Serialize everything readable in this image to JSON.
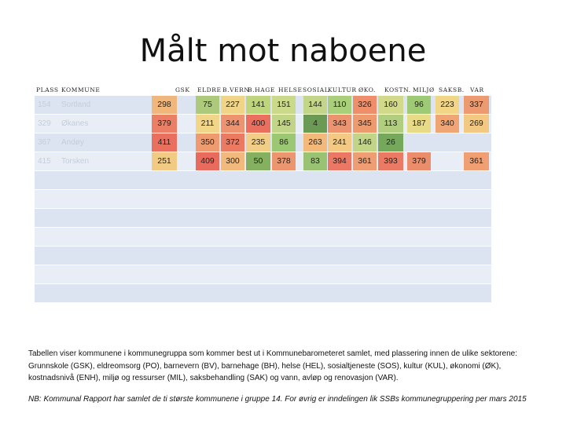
{
  "title": "Målt mot naboene",
  "headers": [
    "PLASS",
    "KOMMUNE",
    "GSK",
    "ELDRE",
    "B.VERN",
    "B.HAGE",
    "HELSE",
    "SOSIAL",
    "KULTUR",
    "ØKO.",
    "KOSTN.",
    "MILJØ",
    "SAKSB.",
    "VAR"
  ],
  "rows": [
    {
      "rank": "154",
      "name": "Sortland",
      "values": [
        "298",
        "75",
        "227",
        "141",
        "151",
        "144",
        "110",
        "326",
        "160",
        "96",
        "223",
        "337"
      ],
      "colors": [
        "#f0b77c",
        "#acc97c",
        "#f0d488",
        "#bed57e",
        "#cad98a",
        "#c3d589",
        "#aacf7a",
        "#ee8e6a",
        "#d2da89",
        "#9fca75",
        "#f2d688",
        "#ee9a70"
      ]
    },
    {
      "rank": "329",
      "name": "Økanes",
      "values": [
        "379",
        "211",
        "344",
        "400",
        "145",
        "4",
        "343",
        "345",
        "113",
        "187",
        "340",
        "269"
      ],
      "colors": [
        "#eb7f66",
        "#f1d588",
        "#ee9370",
        "#ea6f5e",
        "#c2d488",
        "#6a9a53",
        "#ec9470",
        "#ed9a6f",
        "#b1ce7f",
        "#e8db88",
        "#f0a575",
        "#f3c882"
      ]
    },
    {
      "rank": "367",
      "name": "Andøy",
      "values": [
        "411",
        "350",
        "372",
        "235",
        "86",
        "263",
        "241",
        "146",
        "26",
        "",
        "",
        ""
      ],
      "colors": [
        "#e9705e",
        "#ef9b70",
        "#ea7a62",
        "#f1cd85",
        "#9cc874",
        "#f3b97a",
        "#f3c983",
        "#c1d488",
        "#76a85c",
        "",
        "",
        ""
      ]
    },
    {
      "rank": "415",
      "name": "Torsken",
      "values": [
        "251",
        "409",
        "300",
        "50",
        "378",
        "83",
        "394",
        "361",
        "393",
        "379",
        "",
        "361"
      ],
      "colors": [
        "#f1cb84",
        "#e96b5e",
        "#f1b97b",
        "#84b060",
        "#ec9670",
        "#99c373",
        "#eb7765",
        "#ef9d72",
        "#ea7a63",
        "#eb8d6b",
        "",
        "#ef9f72"
      ]
    }
  ],
  "empty_rows": 7,
  "footnote": "Tabellen viser kommunene i kommunegruppa som kommer best ut i Kommunebarometeret samlet, med plassering innen de ulike sektorene: Grunnskole (GSK), eldreomsorg (PO), barnevern (BV), barnehage (BH), helse (HEL), sosialtjeneste (SOS), kultur (KUL), økonomi (ØK), kostnadsnivå (ENH), miljø og ressurser (MIL), saksbehandling (SAK) og vann, avløp og renovasjon (VAR).",
  "note": "NB: Kommunal Rapport har samlet de ti største kommunene i gruppe 14. For øvrig er inndelingen lik SSBs kommunegruppering per mars 2015"
}
